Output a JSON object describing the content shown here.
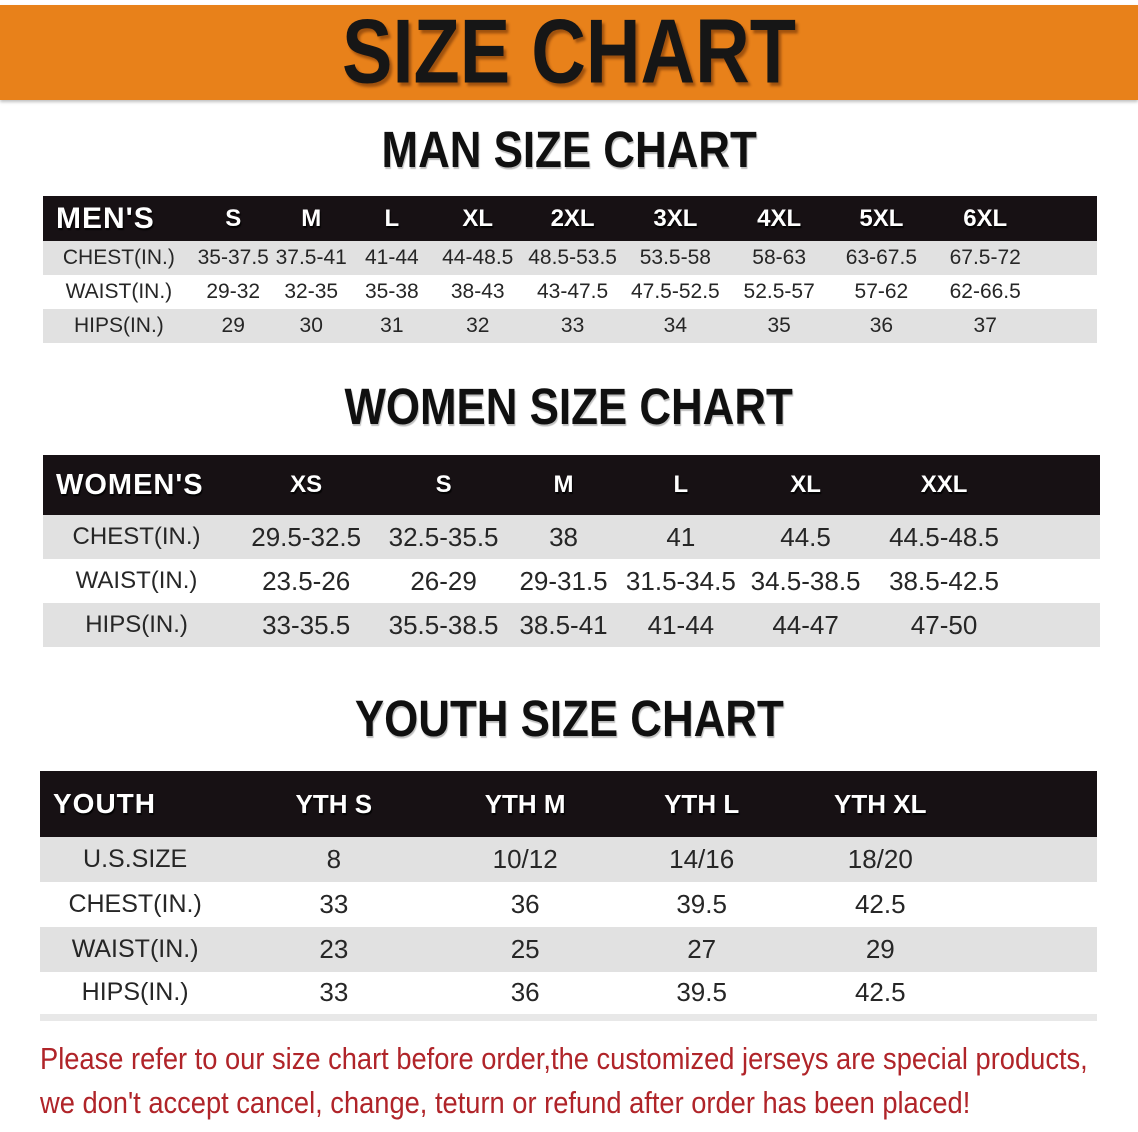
{
  "banner": {
    "title": "SIZE CHART"
  },
  "chart_data": [
    {
      "type": "table",
      "id": "men",
      "title": "MAN SIZE CHART",
      "corner_label": "MEN'S",
      "columns": [
        "S",
        "M",
        "L",
        "XL",
        "2XL",
        "3XL",
        "4XL",
        "5XL",
        "6XL"
      ],
      "rows": [
        {
          "label": "CHEST(IN.)",
          "values": [
            "35-37.5",
            "37.5-41",
            "41-44",
            "44-48.5",
            "48.5-53.5",
            "53.5-58",
            "58-63",
            "63-67.5",
            "67.5-72"
          ]
        },
        {
          "label": "WAIST(IN.)",
          "values": [
            "29-32",
            "32-35",
            "35-38",
            "38-43",
            "43-47.5",
            "47.5-52.5",
            "52.5-57",
            "57-62",
            "62-66.5"
          ]
        },
        {
          "label": "HIPS(IN.)",
          "values": [
            "29",
            "30",
            "31",
            "32",
            "33",
            "34",
            "35",
            "36",
            "37"
          ]
        }
      ]
    },
    {
      "type": "table",
      "id": "women",
      "title": "WOMEN SIZE CHART",
      "corner_label": "WOMEN'S",
      "columns": [
        "XS",
        "S",
        "M",
        "L",
        "XL",
        "XXL"
      ],
      "rows": [
        {
          "label": "CHEST(IN.)",
          "values": [
            "29.5-32.5",
            "32.5-35.5",
            "38",
            "41",
            "44.5",
            "44.5-48.5"
          ]
        },
        {
          "label": "WAIST(IN.)",
          "values": [
            "23.5-26",
            "26-29",
            "29-31.5",
            "31.5-34.5",
            "34.5-38.5",
            "38.5-42.5"
          ]
        },
        {
          "label": "HIPS(IN.)",
          "values": [
            "33-35.5",
            "35.5-38.5",
            "38.5-41",
            "41-44",
            "44-47",
            "47-50"
          ]
        }
      ]
    },
    {
      "type": "table",
      "id": "youth",
      "title": "YOUTH SIZE CHART",
      "corner_label": "YOUTH",
      "columns": [
        "YTH S",
        "YTH M",
        "YTH L",
        "YTH XL"
      ],
      "rows": [
        {
          "label": "U.S.SIZE",
          "values": [
            "8",
            "10/12",
            "14/16",
            "18/20"
          ]
        },
        {
          "label": "CHEST(IN.)",
          "values": [
            "33",
            "36",
            "39.5",
            "42.5"
          ]
        },
        {
          "label": "WAIST(IN.)",
          "values": [
            "23",
            "25",
            "27",
            "29"
          ]
        },
        {
          "label": "HIPS(IN.)",
          "values": [
            "33",
            "36",
            "39.5",
            "42.5"
          ]
        }
      ]
    }
  ],
  "disclaimer": {
    "lines": [
      "Please refer to our size chart before order,the customized jerseys are special products,",
      "we don't accept cancel, change, teturn or refund after order has been placed!"
    ]
  },
  "colors": {
    "orange": "#e8811a",
    "bar": "#171114",
    "stripe": "#e1e1e1",
    "red": "#b02429"
  }
}
